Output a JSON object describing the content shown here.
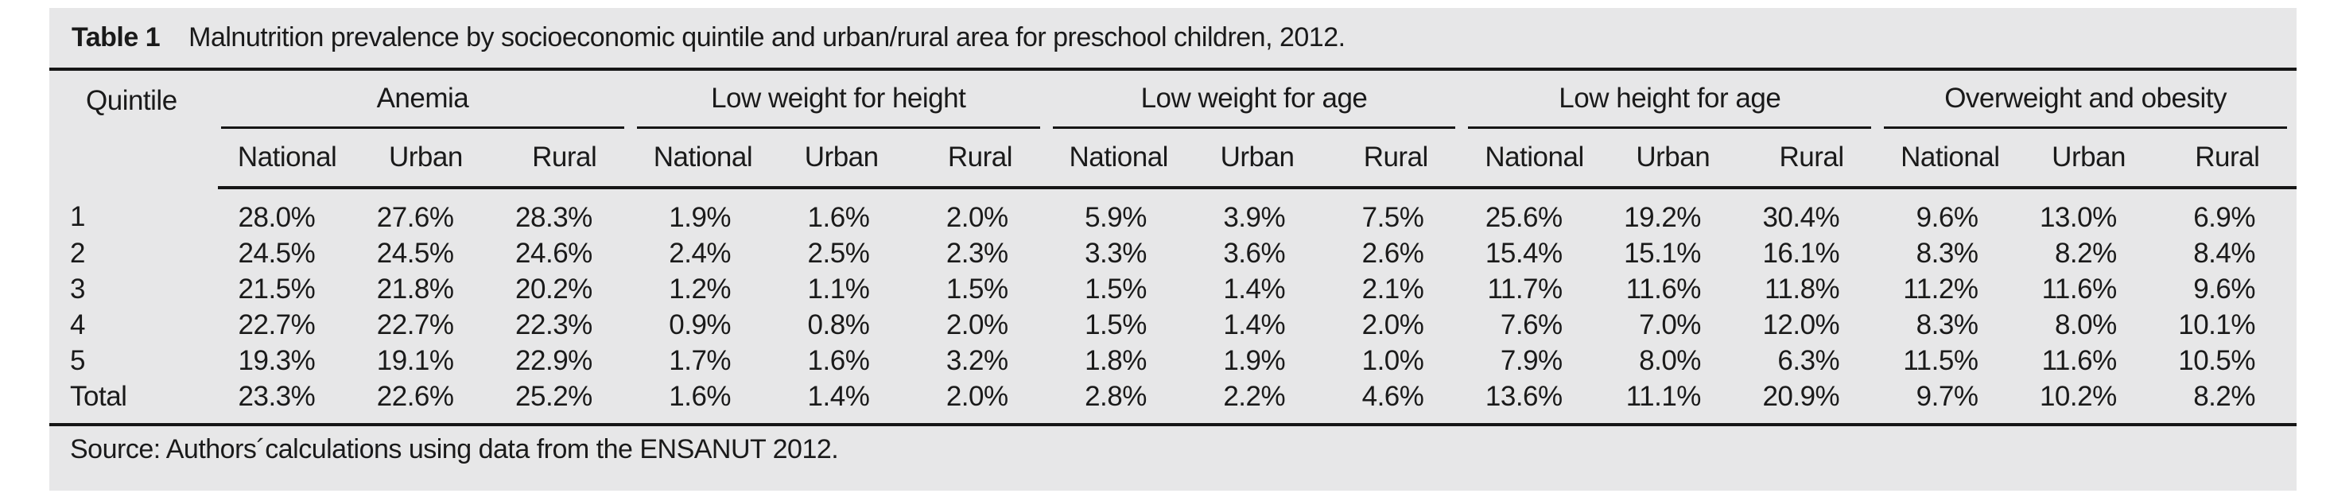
{
  "table": {
    "label": "Table 1",
    "title": "Malnutrition prevalence by socioeconomic quintile and urban/rural area for preschool children, 2012.",
    "row_header": "Quintile",
    "groups": [
      {
        "label": "Anemia"
      },
      {
        "label": "Low weight for height"
      },
      {
        "label": "Low weight for age"
      },
      {
        "label": "Low height for age"
      },
      {
        "label": "Overweight and obesity"
      }
    ],
    "subheaders": [
      "National",
      "Urban",
      "Rural"
    ],
    "rows": [
      {
        "label": "1",
        "values": [
          "28.0%",
          "27.6%",
          "28.3%",
          "1.9%",
          "1.6%",
          "2.0%",
          "5.9%",
          "3.9%",
          "7.5%",
          "25.6%",
          "19.2%",
          "30.4%",
          "9.6%",
          "13.0%",
          "6.9%"
        ]
      },
      {
        "label": "2",
        "values": [
          "24.5%",
          "24.5%",
          "24.6%",
          "2.4%",
          "2.5%",
          "2.3%",
          "3.3%",
          "3.6%",
          "2.6%",
          "15.4%",
          "15.1%",
          "16.1%",
          "8.3%",
          "8.2%",
          "8.4%"
        ]
      },
      {
        "label": "3",
        "values": [
          "21.5%",
          "21.8%",
          "20.2%",
          "1.2%",
          "1.1%",
          "1.5%",
          "1.5%",
          "1.4%",
          "2.1%",
          "11.7%",
          "11.6%",
          "11.8%",
          "11.2%",
          "11.6%",
          "9.6%"
        ]
      },
      {
        "label": "4",
        "values": [
          "22.7%",
          "22.7%",
          "22.3%",
          "0.9%",
          "0.8%",
          "2.0%",
          "1.5%",
          "1.4%",
          "2.0%",
          "7.6%",
          "7.0%",
          "12.0%",
          "8.3%",
          "8.0%",
          "10.1%"
        ]
      },
      {
        "label": "5",
        "values": [
          "19.3%",
          "19.1%",
          "22.9%",
          "1.7%",
          "1.6%",
          "3.2%",
          "1.8%",
          "1.9%",
          "1.0%",
          "7.9%",
          "8.0%",
          "6.3%",
          "11.5%",
          "11.6%",
          "10.5%"
        ]
      },
      {
        "label": "Total",
        "values": [
          "23.3%",
          "22.6%",
          "25.2%",
          "1.6%",
          "1.4%",
          "2.0%",
          "2.8%",
          "2.2%",
          "4.6%",
          "13.6%",
          "11.1%",
          "20.9%",
          "9.7%",
          "10.2%",
          "8.2%"
        ]
      }
    ],
    "source": "Source: Authors´calculations using data from the ENSANUT 2012.",
    "colors": {
      "card_background": "#e7e7e8",
      "text": "#1a1a1a",
      "rule": "#161616",
      "page_background": "#ffffff"
    }
  },
  "chart_data": {
    "type": "table",
    "title": "Table 1 Malnutrition prevalence by socioeconomic quintile and urban/rural area for preschool children, 2012.",
    "column_groups": [
      "Anemia",
      "Low weight for height",
      "Low weight for age",
      "Low height for age",
      "Overweight and obesity"
    ],
    "sub_columns": [
      "National",
      "Urban",
      "Rural"
    ],
    "row_labels": [
      "1",
      "2",
      "3",
      "4",
      "5",
      "Total"
    ],
    "values_percent": [
      [
        28.0,
        27.6,
        28.3,
        1.9,
        1.6,
        2.0,
        5.9,
        3.9,
        7.5,
        25.6,
        19.2,
        30.4,
        9.6,
        13.0,
        6.9
      ],
      [
        24.5,
        24.5,
        24.6,
        2.4,
        2.5,
        2.3,
        3.3,
        3.6,
        2.6,
        15.4,
        15.1,
        16.1,
        8.3,
        8.2,
        8.4
      ],
      [
        21.5,
        21.8,
        20.2,
        1.2,
        1.1,
        1.5,
        1.5,
        1.4,
        2.1,
        11.7,
        11.6,
        11.8,
        11.2,
        11.6,
        9.6
      ],
      [
        22.7,
        22.7,
        22.3,
        0.9,
        0.8,
        2.0,
        1.5,
        1.4,
        2.0,
        7.6,
        7.0,
        12.0,
        8.3,
        8.0,
        10.1
      ],
      [
        19.3,
        19.1,
        22.9,
        1.7,
        1.6,
        3.2,
        1.8,
        1.9,
        1.0,
        7.9,
        8.0,
        6.3,
        11.5,
        11.6,
        10.5
      ],
      [
        23.3,
        22.6,
        25.2,
        1.6,
        1.4,
        2.0,
        2.8,
        2.2,
        4.6,
        13.6,
        11.1,
        20.9,
        9.7,
        10.2,
        8.2
      ]
    ],
    "source": "Source: Authors´calculations using data from the ENSANUT 2012."
  }
}
